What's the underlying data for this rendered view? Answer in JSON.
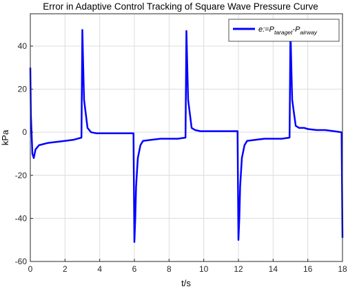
{
  "chart_data": {
    "type": "line",
    "title": "Error in Adaptive Control Tracking of Square Wave Pressure Curve",
    "xlabel": "t/s",
    "ylabel": "kPa",
    "xlim": [
      0,
      18
    ],
    "ylim": [
      -60,
      55
    ],
    "xticks": [
      "0",
      "2",
      "4",
      "6",
      "8",
      "10",
      "12",
      "14",
      "16",
      "18"
    ],
    "yticks": [
      "-60",
      "-40",
      "-20",
      "0",
      "20",
      "40"
    ],
    "grid": true,
    "legend_position": "top-right",
    "legend": {
      "prefix": "e:=P",
      "sub1": "taraget",
      "mid": "-P",
      "sub2": "airway"
    },
    "series": [
      {
        "color": "#0000ff",
        "x": [
          0,
          0.03,
          0.12,
          0.2,
          0.3,
          0.5,
          1.0,
          1.5,
          2.0,
          2.5,
          2.95,
          3.0,
          3.05,
          3.1,
          3.3,
          3.5,
          3.8,
          4.0,
          4.5,
          5.0,
          5.5,
          5.95,
          6.0,
          6.05,
          6.1,
          6.2,
          6.35,
          6.5,
          7.0,
          7.5,
          8.0,
          8.5,
          8.95,
          9.0,
          9.05,
          9.1,
          9.3,
          9.5,
          9.8,
          10.0,
          10.5,
          11.0,
          11.5,
          11.95,
          12.0,
          12.05,
          12.1,
          12.2,
          12.35,
          12.5,
          13.0,
          13.5,
          14.0,
          14.5,
          14.95,
          15.0,
          15.05,
          15.1,
          15.3,
          15.5,
          15.8,
          16.0,
          16.5,
          17.0,
          17.5,
          17.95,
          18.0
        ],
        "y": [
          30,
          8,
          -10,
          -12,
          -8,
          -6,
          -5,
          -4.5,
          -4,
          -3.5,
          -2.5,
          47.5,
          30,
          15,
          2,
          0,
          -0.5,
          -0.5,
          -0.5,
          -0.5,
          -0.5,
          -0.5,
          -51,
          -40,
          -25,
          -12,
          -6,
          -4,
          -3.5,
          -3,
          -3,
          -3,
          -2.5,
          47,
          30,
          15,
          2,
          1,
          0.5,
          0.5,
          0.5,
          0.5,
          0.5,
          0.5,
          -50,
          -40,
          -25,
          -12,
          -6,
          -4,
          -3.5,
          -3,
          -3,
          -3,
          -2.5,
          48,
          30,
          15,
          3,
          2,
          2,
          1.5,
          1,
          1,
          0.5,
          0,
          -49
        ]
      }
    ]
  }
}
